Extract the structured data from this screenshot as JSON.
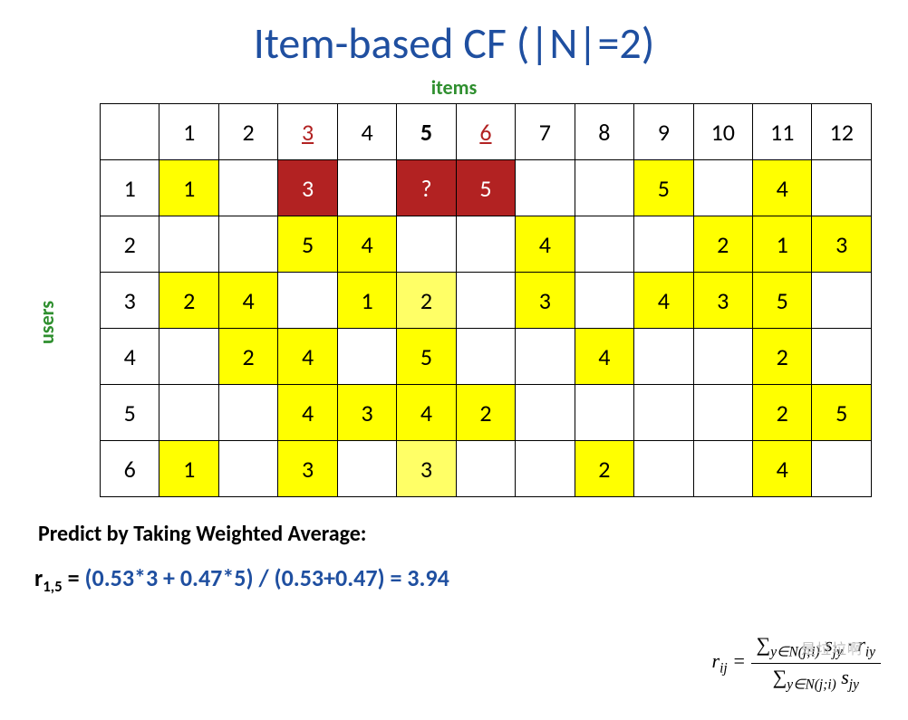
{
  "title": {
    "text": "Item-based CF (|N|=2)",
    "color": "#1f4fa0"
  },
  "axis": {
    "top": {
      "text": "items",
      "color": "#2f8f2f"
    },
    "left": {
      "text": "users",
      "color": "#2f8f2f"
    }
  },
  "table": {
    "n_cols": 12,
    "n_rows": 6,
    "col_headers": [
      "1",
      "2",
      "3",
      "4",
      "5",
      "6",
      "7",
      "8",
      "9",
      "10",
      "11",
      "12"
    ],
    "row_headers": [
      "1",
      "2",
      "3",
      "4",
      "5",
      "6"
    ],
    "highlight_cols": [
      3,
      6
    ],
    "highlight_color": "#b22222",
    "bold_cols": [
      5
    ],
    "cells": [
      [
        {
          "v": "1",
          "bg": "#ffff00"
        },
        {
          "v": "",
          "bg": ""
        },
        {
          "v": "3",
          "bg": "#b22222",
          "fg": "#ffffff"
        },
        {
          "v": "",
          "bg": ""
        },
        {
          "v": "?",
          "bg": "#b22222",
          "fg": "#ffffff"
        },
        {
          "v": "5",
          "bg": "#b22222",
          "fg": "#ffffff"
        },
        {
          "v": "",
          "bg": ""
        },
        {
          "v": "",
          "bg": ""
        },
        {
          "v": "5",
          "bg": "#ffff00"
        },
        {
          "v": "",
          "bg": ""
        },
        {
          "v": "4",
          "bg": "#ffff00"
        },
        {
          "v": "",
          "bg": ""
        }
      ],
      [
        {
          "v": "",
          "bg": ""
        },
        {
          "v": "",
          "bg": ""
        },
        {
          "v": "5",
          "bg": "#ffff00"
        },
        {
          "v": "4",
          "bg": "#ffff00"
        },
        {
          "v": "",
          "bg": ""
        },
        {
          "v": "",
          "bg": ""
        },
        {
          "v": "4",
          "bg": "#ffff00"
        },
        {
          "v": "",
          "bg": ""
        },
        {
          "v": "",
          "bg": ""
        },
        {
          "v": "2",
          "bg": "#ffff00"
        },
        {
          "v": "1",
          "bg": "#ffff00"
        },
        {
          "v": "3",
          "bg": "#ffff00"
        }
      ],
      [
        {
          "v": "2",
          "bg": "#ffff00"
        },
        {
          "v": "4",
          "bg": "#ffff00"
        },
        {
          "v": "",
          "bg": ""
        },
        {
          "v": "1",
          "bg": "#ffff00"
        },
        {
          "v": "2",
          "bg": "#ffff66"
        },
        {
          "v": "",
          "bg": ""
        },
        {
          "v": "3",
          "bg": "#ffff00"
        },
        {
          "v": "",
          "bg": ""
        },
        {
          "v": "4",
          "bg": "#ffff00"
        },
        {
          "v": "3",
          "bg": "#ffff00"
        },
        {
          "v": "5",
          "bg": "#ffff00"
        },
        {
          "v": "",
          "bg": ""
        }
      ],
      [
        {
          "v": "",
          "bg": ""
        },
        {
          "v": "2",
          "bg": "#ffff00"
        },
        {
          "v": "4",
          "bg": "#ffff00"
        },
        {
          "v": "",
          "bg": ""
        },
        {
          "v": "5",
          "bg": "#ffff00"
        },
        {
          "v": "",
          "bg": ""
        },
        {
          "v": "",
          "bg": ""
        },
        {
          "v": "4",
          "bg": "#ffff00"
        },
        {
          "v": "",
          "bg": ""
        },
        {
          "v": "",
          "bg": ""
        },
        {
          "v": "2",
          "bg": "#ffff00"
        },
        {
          "v": "",
          "bg": ""
        }
      ],
      [
        {
          "v": "",
          "bg": ""
        },
        {
          "v": "",
          "bg": ""
        },
        {
          "v": "4",
          "bg": "#ffff00"
        },
        {
          "v": "3",
          "bg": "#ffff00"
        },
        {
          "v": "4",
          "bg": "#ffff00"
        },
        {
          "v": "2",
          "bg": "#ffff00"
        },
        {
          "v": "",
          "bg": ""
        },
        {
          "v": "",
          "bg": ""
        },
        {
          "v": "",
          "bg": ""
        },
        {
          "v": "",
          "bg": ""
        },
        {
          "v": "2",
          "bg": "#ffff00"
        },
        {
          "v": "5",
          "bg": "#ffff00"
        }
      ],
      [
        {
          "v": "1",
          "bg": "#ffff00"
        },
        {
          "v": "",
          "bg": ""
        },
        {
          "v": "3",
          "bg": "#ffff00"
        },
        {
          "v": "",
          "bg": ""
        },
        {
          "v": "3",
          "bg": "#ffff66"
        },
        {
          "v": "",
          "bg": ""
        },
        {
          "v": "",
          "bg": ""
        },
        {
          "v": "2",
          "bg": "#ffff00"
        },
        {
          "v": "",
          "bg": ""
        },
        {
          "v": "",
          "bg": ""
        },
        {
          "v": "4",
          "bg": "#ffff00"
        },
        {
          "v": "",
          "bg": ""
        }
      ]
    ]
  },
  "predict_label": "Predict by Taking Weighted Average:",
  "formula": {
    "lhs_r": "r",
    "lhs_sub": "1,5",
    "eq": " = ",
    "rhs_text": "(0.53*3 + 0.47*5) / (0.53+0.47) = 3.94",
    "rhs_color": "#1f4fa0"
  },
  "equation": {
    "lhs": "r",
    "lhs_sub": "ij",
    "num_pre": "∑",
    "num_sub": "y∈N(j;i)",
    "num_body1": " s",
    "num_body1_sub": "jy",
    "num_mid": " · r",
    "num_body2_sub": "iy",
    "den_pre": "∑",
    "den_sub": "y∈N(j;i)",
    "den_body": " s",
    "den_body_sub": "jy"
  },
  "watermark": "是垃垃啊"
}
